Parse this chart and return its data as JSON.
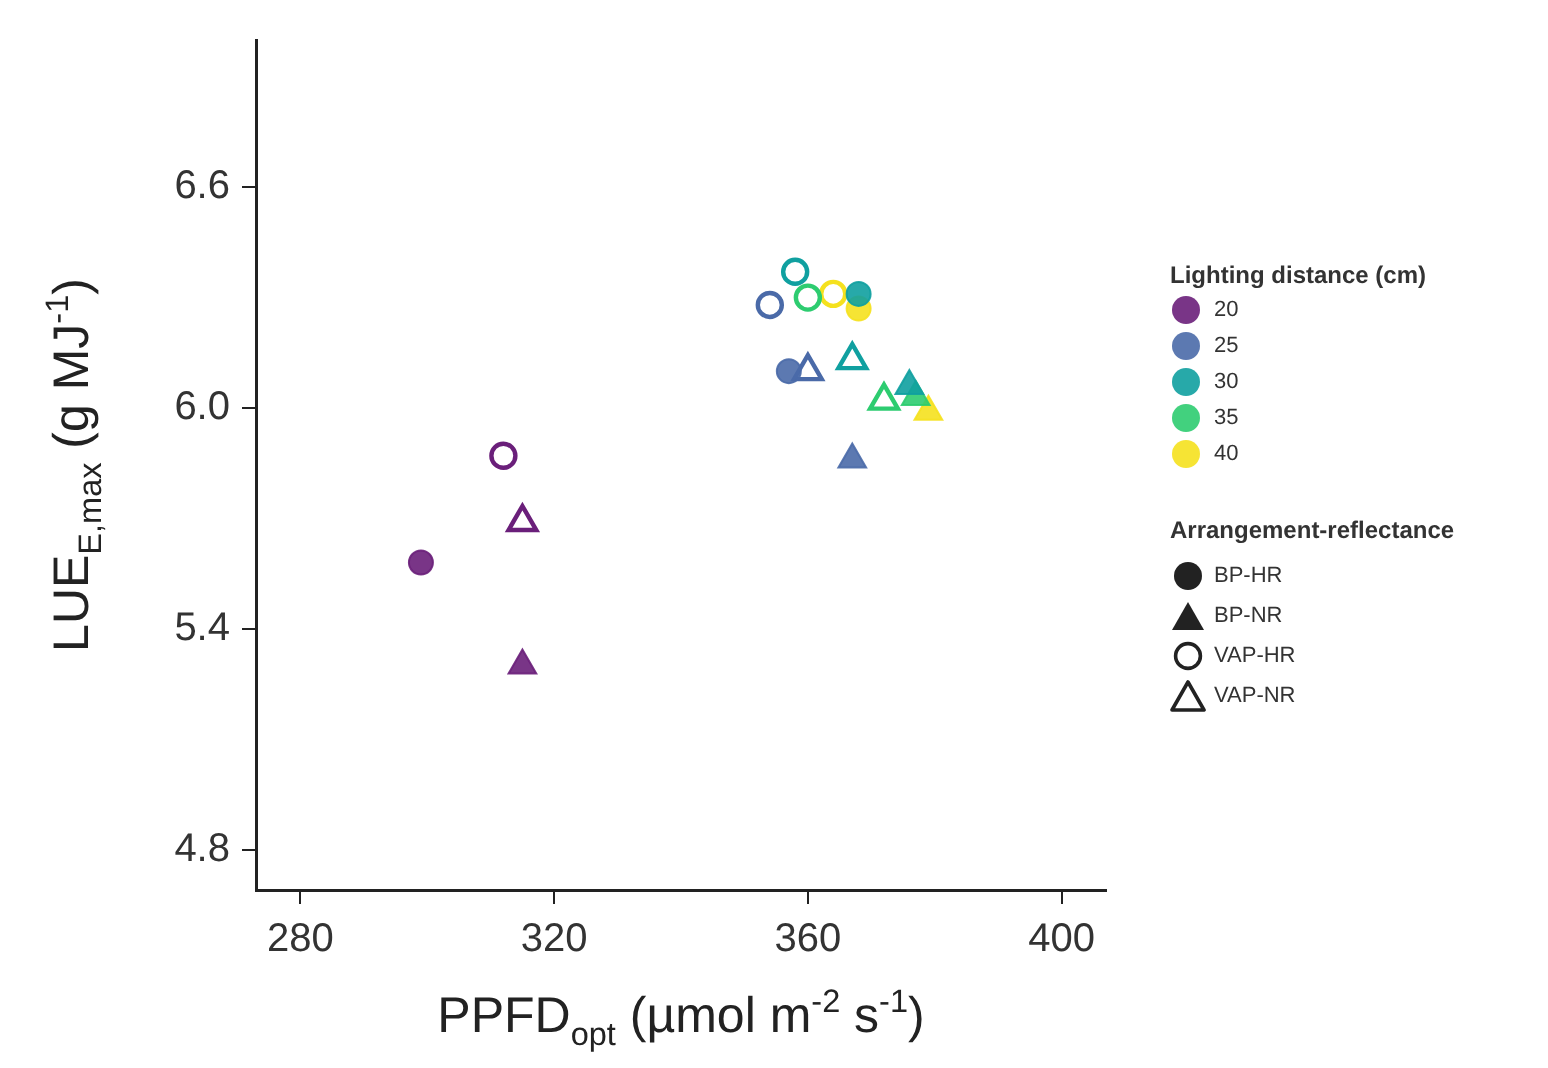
{
  "chart_data": {
    "type": "scatter",
    "xlabel": "PPFD$_{opt}$ (µmol m$^{-2}$ s$^{-1}$)",
    "ylabel": "LUE$_{E,max}$ (g MJ$^{-1}$)",
    "xlim": [
      273,
      407
    ],
    "xticks": [
      280,
      320,
      360,
      400
    ],
    "ylim": [
      4.69,
      7.0
    ],
    "yticks": [
      4.8,
      5.4,
      {
        "value": 6.0,
        "label": "6.0"
      },
      6.6
    ],
    "grid": false,
    "legend": "right",
    "legend_title": "Lighting distance (cm)",
    "annotations": [
      "Arrangement-reflectance",
      "BP-HR",
      "BP-NR",
      "VAP-HR",
      "VAP-NR"
    ],
    "series": [
      {
        "name": "20",
        "color": "#6a1f7a",
        "marker": "circle",
        "x": [
          299
        ],
        "values": [
          5.58
        ]
      },
      {
        "color": "#6a1f7a",
        "marker": "triangle",
        "x": [
          315
        ],
        "values": [
          5.3
        ]
      },
      {
        "color": "#6a1f7a",
        "marker": "circle-open",
        "x": [
          312
        ],
        "values": [
          5.87
        ]
      },
      {
        "color": "#6a1f7a",
        "marker": "triangle-open",
        "x": [
          315
        ],
        "values": [
          5.69
        ]
      },
      {
        "name": "25",
        "color": "#4a6aa8",
        "marker": "circle",
        "x": [
          357
        ],
        "values": [
          6.1
        ]
      },
      {
        "color": "#4a6aa8",
        "marker": "triangle",
        "x": [
          367
        ],
        "values": [
          5.86
        ]
      },
      {
        "color": "#4a6aa8",
        "marker": "circle-open",
        "x": [
          354
        ],
        "values": [
          6.28
        ]
      },
      {
        "color": "#4a6aa8",
        "marker": "triangle-open",
        "x": [
          360
        ],
        "values": [
          6.1
        ]
      },
      {
        "name": "30",
        "color": "#10a0a0",
        "marker": "circle",
        "x": [
          368
        ],
        "values": [
          6.31
        ]
      },
      {
        "color": "#10a0a0",
        "marker": "triangle",
        "x": [
          376
        ],
        "values": [
          6.06
        ]
      },
      {
        "color": "#10a0a0",
        "marker": "circle-open",
        "x": [
          358
        ],
        "values": [
          6.37
        ]
      },
      {
        "color": "#10a0a0",
        "marker": "triangle-open",
        "x": [
          367
        ],
        "values": [
          6.13
        ]
      },
      {
        "name": "35",
        "color": "#2dcc70",
        "marker": "circle",
        "x": [
          null
        ],
        "values": [
          null
        ]
      },
      {
        "color": "#2dcc70",
        "marker": "triangle",
        "x": [
          377
        ],
        "values": [
          6.03
        ]
      },
      {
        "color": "#2dcc70",
        "marker": "circle-open",
        "x": [
          360
        ],
        "values": [
          6.3
        ]
      },
      {
        "color": "#2dcc70",
        "marker": "triangle-open",
        "x": [
          372
        ],
        "values": [
          6.02
        ]
      },
      {
        "name": "40",
        "color": "#f5e11e",
        "marker": "circle",
        "x": [
          368
        ],
        "values": [
          6.27
        ]
      },
      {
        "color": "#f5e11e",
        "marker": "triangle",
        "x": [
          379
        ],
        "values": [
          5.99
        ]
      },
      {
        "color": "#f5e11e",
        "marker": "circle-open",
        "x": [
          364
        ],
        "values": [
          6.31
        ]
      },
      {
        "color": "#f5e11e",
        "marker": "triangle-open",
        "x": [
          null
        ],
        "values": [
          null
        ]
      }
    ]
  }
}
